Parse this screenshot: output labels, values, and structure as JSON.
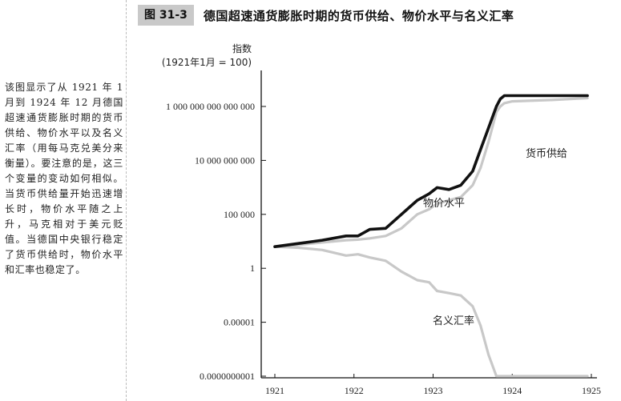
{
  "caption": "该图显示了从 1921 年 1 月到 1924 年 12 月德国超速通货膨胀时期的货币供给、物价水平以及名义汇率（用每马克兑美分来衡量）。要注意的是，这三个变量的变动如何相似。当货币供给量开始迅速增长时，物价水平随之上升，马克相对于美元贬值。当德国中央银行稳定了货币供给时，物价水平和汇率也稳定了。",
  "figure": {
    "badge": "图 31-3",
    "title": "德国超速通货膨胀时期的货币供给、物价水平与名义汇率"
  },
  "chart_data": {
    "type": "line",
    "title": "德国超速通货膨胀时期的货币供给、物价水平与名义汇率",
    "ylabel_line1": "指数",
    "ylabel_line2": "(1921年1月 = 100)",
    "xlabel": "",
    "y_scale": "log",
    "ylim": [
      1e-10,
      1e+16
    ],
    "xlim": [
      1921,
      1925
    ],
    "x_ticks": [
      "1921",
      "1922",
      "1923",
      "1924",
      "1925"
    ],
    "y_ticks": [
      {
        "value": 1000000000000000.0,
        "label": "1 000 000 000 000 000"
      },
      {
        "value": 10000000000.0,
        "label": "10 000 000 000"
      },
      {
        "value": 100000.0,
        "label": "100 000"
      },
      {
        "value": 1,
        "label": "1"
      },
      {
        "value": 1e-05,
        "label": "0.00001"
      },
      {
        "value": 1e-10,
        "label": "0.0000000001"
      }
    ],
    "series": [
      {
        "name": "物价水平",
        "color": "#111111",
        "x": [
          1921.0,
          1921.3,
          1921.6,
          1921.9,
          1922.05,
          1922.2,
          1922.4,
          1922.6,
          1922.8,
          1922.95,
          1923.05,
          1923.2,
          1923.35,
          1923.5,
          1923.6,
          1923.7,
          1923.8,
          1923.85,
          1923.9,
          1924.0,
          1924.5,
          1924.95
        ],
        "values": [
          100,
          200,
          400,
          1000,
          1000,
          4000,
          5000,
          100000,
          2000000,
          8000000,
          30000000,
          20000000,
          50000000,
          1000000000,
          100000000000.0,
          10000000000000.0,
          1000000000000000.0,
          5000000000000000.0,
          1e+16,
          1e+16,
          1e+16,
          1e+16
        ]
      },
      {
        "name": "货币供给",
        "color": "#c8c8c8",
        "x": [
          1921.0,
          1921.3,
          1921.6,
          1921.9,
          1922.05,
          1922.2,
          1922.4,
          1922.6,
          1922.8,
          1922.95,
          1923.05,
          1923.2,
          1923.35,
          1923.5,
          1923.6,
          1923.7,
          1923.8,
          1923.85,
          1923.9,
          1924.0,
          1924.5,
          1924.95
        ],
        "values": [
          100,
          150,
          250,
          400,
          450,
          600,
          1000,
          5000,
          100000,
          300000,
          1000000,
          2000000,
          4000000,
          50000000,
          2000000000,
          500000000000.0,
          300000000000000.0,
          1000000000000000.0,
          2000000000000000.0,
          3000000000000000.0,
          4000000000000000.0,
          6000000000000000.0
        ]
      },
      {
        "name": "名义汇率",
        "color": "#c8c8c8",
        "x": [
          1921.0,
          1921.3,
          1921.6,
          1921.9,
          1922.05,
          1922.2,
          1922.4,
          1922.6,
          1922.8,
          1922.95,
          1923.05,
          1923.2,
          1923.35,
          1923.5,
          1923.6,
          1923.7,
          1923.8,
          1923.85,
          1923.9,
          1924.0,
          1924.5,
          1924.95
        ],
        "values": [
          100,
          80,
          50,
          15,
          20,
          10,
          5,
          0.5,
          0.08,
          0.05,
          0.008,
          0.005,
          0.003,
          0.0003,
          5e-06,
          1e-08,
          1e-10,
          1e-10,
          1e-10,
          1e-10,
          1e-10,
          1e-10
        ]
      }
    ]
  }
}
